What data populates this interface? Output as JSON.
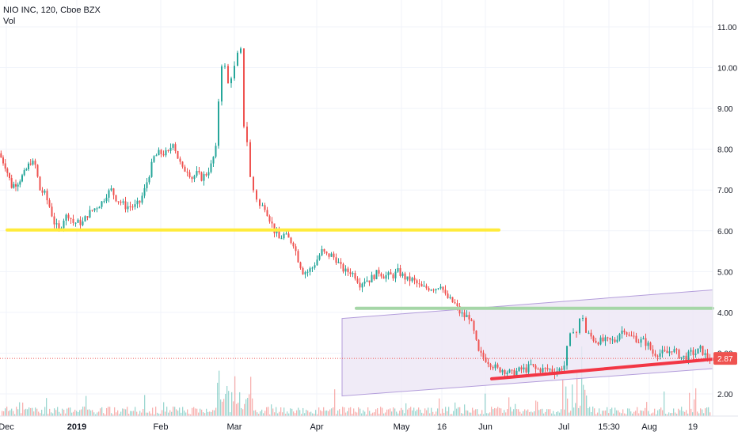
{
  "legend": {
    "symbol_line": "NIO INC, 120, Cboe BZX",
    "volume_label": "Vol"
  },
  "price_axis": {
    "ticks": [
      "11.00",
      "10.00",
      "9.00",
      "8.00",
      "7.00",
      "6.00",
      "5.00",
      "4.00",
      "3.00",
      "2.00"
    ],
    "tick_values": [
      11,
      10,
      9,
      8,
      7,
      6,
      5,
      4,
      3,
      2
    ],
    "current_price_label": "2.87",
    "current_price": 2.87
  },
  "time_axis": {
    "labels": [
      "Dec",
      "2019",
      "Feb",
      "Mar",
      "Apr",
      "May",
      "16",
      "Jun",
      "Jul",
      "15:30",
      "Aug",
      "19"
    ],
    "bold": [
      false,
      true,
      false,
      false,
      false,
      false,
      false,
      false,
      false,
      false,
      false,
      false
    ]
  },
  "colors": {
    "up": "#26a69a",
    "down": "#ef5350",
    "support_yellow": "#ffeb3b",
    "resistance_green": "#a5d6a7",
    "trend_red": "#f23645",
    "channel_fill": "#ede7f6",
    "channel_stroke": "#b39ddb",
    "price_marker": "#ef5350"
  },
  "chart_data": {
    "type": "candlestick",
    "title": "NIO INC, 120, Cboe BZX",
    "ylim": [
      1.8,
      11.4
    ],
    "x_range": [
      "2018-12",
      "2019-08"
    ],
    "close_path": [
      [
        0,
        7.9
      ],
      [
        8,
        7.6
      ],
      [
        16,
        7.1
      ],
      [
        24,
        7.2
      ],
      [
        32,
        7.4
      ],
      [
        40,
        7.7
      ],
      [
        46,
        7.6
      ],
      [
        52,
        7.0
      ],
      [
        58,
        6.9
      ],
      [
        64,
        6.6
      ],
      [
        70,
        6.2
      ],
      [
        76,
        6.0
      ],
      [
        82,
        6.3
      ],
      [
        88,
        6.4
      ],
      [
        94,
        6.2
      ],
      [
        100,
        6.2
      ],
      [
        106,
        6.2
      ],
      [
        112,
        6.4
      ],
      [
        118,
        6.5
      ],
      [
        124,
        6.6
      ],
      [
        130,
        6.7
      ],
      [
        136,
        6.9
      ],
      [
        142,
        7.0
      ],
      [
        148,
        6.8
      ],
      [
        154,
        6.7
      ],
      [
        160,
        6.6
      ],
      [
        166,
        6.6
      ],
      [
        172,
        6.6
      ],
      [
        178,
        6.7
      ],
      [
        184,
        7.0
      ],
      [
        190,
        7.4
      ],
      [
        196,
        7.8
      ],
      [
        202,
        7.9
      ],
      [
        208,
        7.9
      ],
      [
        214,
        7.9
      ],
      [
        220,
        8.2
      ],
      [
        226,
        7.8
      ],
      [
        232,
        7.5
      ],
      [
        238,
        7.5
      ],
      [
        244,
        7.3
      ],
      [
        250,
        7.4
      ],
      [
        256,
        7.3
      ],
      [
        262,
        7.4
      ],
      [
        268,
        7.6
      ],
      [
        274,
        8.0
      ],
      [
        278,
        9.2
      ],
      [
        282,
        10.1
      ],
      [
        286,
        10.0
      ],
      [
        290,
        9.6
      ],
      [
        294,
        9.8
      ],
      [
        298,
        10.0
      ],
      [
        302,
        10.3
      ],
      [
        306,
        10.4
      ],
      [
        310,
        8.6
      ],
      [
        314,
        8.2
      ],
      [
        318,
        7.3
      ],
      [
        322,
        7.0
      ],
      [
        326,
        6.8
      ],
      [
        330,
        6.6
      ],
      [
        336,
        6.6
      ],
      [
        342,
        6.3
      ],
      [
        348,
        6.0
      ],
      [
        354,
        5.8
      ],
      [
        360,
        5.9
      ],
      [
        366,
        5.8
      ],
      [
        372,
        5.7
      ],
      [
        378,
        5.3
      ],
      [
        384,
        5.0
      ],
      [
        390,
        5.0
      ],
      [
        396,
        5.1
      ],
      [
        402,
        5.3
      ],
      [
        408,
        5.5
      ],
      [
        414,
        5.4
      ],
      [
        420,
        5.4
      ],
      [
        426,
        5.3
      ],
      [
        432,
        5.1
      ],
      [
        438,
        5.0
      ],
      [
        444,
        5.0
      ],
      [
        450,
        4.9
      ],
      [
        456,
        4.7
      ],
      [
        462,
        4.8
      ],
      [
        468,
        4.8
      ],
      [
        474,
        4.9
      ],
      [
        480,
        5.0
      ],
      [
        486,
        4.9
      ],
      [
        492,
        4.9
      ],
      [
        498,
        4.9
      ],
      [
        504,
        5.0
      ],
      [
        510,
        4.9
      ],
      [
        516,
        4.8
      ],
      [
        522,
        4.8
      ],
      [
        528,
        4.7
      ],
      [
        534,
        4.6
      ],
      [
        540,
        4.6
      ],
      [
        546,
        4.6
      ],
      [
        552,
        4.6
      ],
      [
        558,
        4.7
      ],
      [
        564,
        4.4
      ],
      [
        570,
        4.3
      ],
      [
        576,
        4.2
      ],
      [
        582,
        4.0
      ],
      [
        588,
        3.9
      ],
      [
        594,
        3.9
      ],
      [
        600,
        3.5
      ],
      [
        606,
        3.0
      ],
      [
        612,
        2.9
      ],
      [
        618,
        2.8
      ],
      [
        624,
        2.7
      ],
      [
        630,
        2.6
      ],
      [
        636,
        2.6
      ],
      [
        642,
        2.55
      ],
      [
        648,
        2.5
      ],
      [
        654,
        2.55
      ],
      [
        660,
        2.6
      ],
      [
        666,
        2.6
      ],
      [
        672,
        2.7
      ],
      [
        678,
        2.6
      ],
      [
        684,
        2.6
      ],
      [
        690,
        2.6
      ],
      [
        696,
        2.6
      ],
      [
        702,
        2.55
      ],
      [
        708,
        2.6
      ],
      [
        714,
        2.7
      ],
      [
        718,
        3.1
      ],
      [
        722,
        3.4
      ],
      [
        726,
        3.6
      ],
      [
        730,
        3.5
      ],
      [
        734,
        3.8
      ],
      [
        738,
        3.9
      ],
      [
        742,
        3.5
      ],
      [
        748,
        3.4
      ],
      [
        754,
        3.3
      ],
      [
        760,
        3.3
      ],
      [
        766,
        3.3
      ],
      [
        772,
        3.3
      ],
      [
        778,
        3.3
      ],
      [
        784,
        3.5
      ],
      [
        790,
        3.6
      ],
      [
        796,
        3.4
      ],
      [
        802,
        3.4
      ],
      [
        808,
        3.3
      ],
      [
        814,
        3.3
      ],
      [
        820,
        3.2
      ],
      [
        826,
        3.0
      ],
      [
        832,
        3.0
      ],
      [
        838,
        3.0
      ],
      [
        844,
        3.0
      ],
      [
        850,
        3.1
      ],
      [
        856,
        3.0
      ],
      [
        862,
        2.9
      ],
      [
        868,
        2.9
      ],
      [
        874,
        3.0
      ],
      [
        880,
        3.0
      ],
      [
        886,
        3.1
      ],
      [
        892,
        2.95
      ],
      [
        898,
        2.87
      ]
    ],
    "annotations": [
      {
        "type": "horizontal_line",
        "color": "yellow",
        "y": 6.02,
        "x_from": 0.01,
        "x_to": 0.7
      },
      {
        "type": "horizontal_line",
        "color": "green",
        "y": 4.1,
        "x_from": 0.5,
        "x_to": 1.0
      },
      {
        "type": "trend_line",
        "color": "red",
        "from": [
          0.69,
          2.37
        ],
        "to": [
          1.0,
          2.85
        ]
      },
      {
        "type": "parallel_channel",
        "color": "purple",
        "upper": [
          [
            0.48,
            3.85
          ],
          [
            1.0,
            4.55
          ]
        ],
        "lower": [
          [
            0.48,
            1.95
          ],
          [
            1.0,
            2.62
          ]
        ]
      }
    ],
    "volume": "present"
  }
}
